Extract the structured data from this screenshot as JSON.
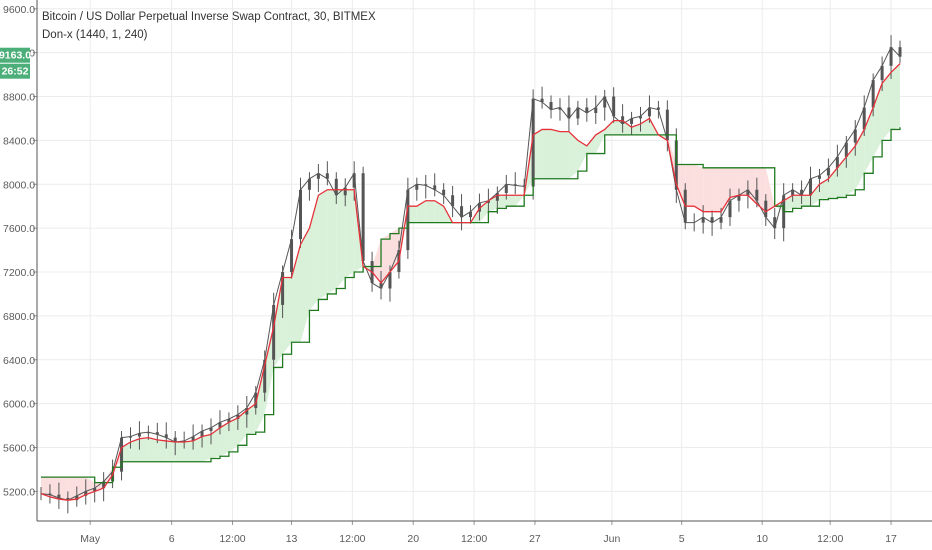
{
  "header": {
    "title": "Bitcoin / US Dollar Perpetual Inverse Swap Contract, 30, BITMEX",
    "indicator": "Don-x (1440, 1, 240)"
  },
  "colors": {
    "upper_line": "#e5323a",
    "lower_line": "#1f7a1f",
    "fill_bull": "#d9f0d9",
    "fill_bear": "#fbdede",
    "candle": "#555555",
    "badge": "#4caf7a",
    "grid": "#ececec"
  },
  "price_badges": [
    {
      "text": "9163.0"
    },
    {
      "text": "26:52"
    }
  ],
  "chart_data": {
    "type": "line",
    "title": "Bitcoin / US Dollar Perpetual Inverse Swap Contract, 30, BITMEX",
    "ylim": [
      4930,
      9680
    ],
    "xlim": [
      0,
      48
    ],
    "y_ticks": [
      5200,
      5600,
      6000,
      6400,
      6800,
      7200,
      7600,
      8000,
      8400,
      8800,
      9200,
      9600
    ],
    "y_tick_labels": [
      "5200.0",
      "5600.0",
      "6000.0",
      "6400.0",
      "6800.0",
      "7200.0",
      "7600.0",
      "8000.0",
      "8400.0",
      "8800.0",
      "9200.0",
      "9600.0"
    ],
    "x_ticks": [
      {
        "x": 2.75,
        "label": "May"
      },
      {
        "x": 7.3,
        "label": "6"
      },
      {
        "x": 10.7,
        "label": "12:00"
      },
      {
        "x": 14.0,
        "label": "13"
      },
      {
        "x": 17.4,
        "label": "12:00"
      },
      {
        "x": 20.8,
        "label": "20"
      },
      {
        "x": 24.2,
        "label": "12:00"
      },
      {
        "x": 27.6,
        "label": "27"
      },
      {
        "x": 31.9,
        "label": "Jun"
      },
      {
        "x": 35.8,
        "label": "5"
      },
      {
        "x": 40.3,
        "label": "10"
      },
      {
        "x": 44.1,
        "label": "12:00"
      },
      {
        "x": 47.5,
        "label": "17"
      }
    ],
    "grid": true,
    "series": [
      {
        "role": "price",
        "x": [
          0,
          0.5,
          1,
          1.5,
          2,
          2.5,
          3,
          3.5,
          4,
          4.5,
          5,
          5.5,
          6,
          6.5,
          7,
          7.5,
          8,
          8.5,
          9,
          9.5,
          10,
          10.5,
          11,
          11.5,
          12,
          12.5,
          13,
          13.5,
          14,
          14.5,
          15,
          15.5,
          16,
          16.5,
          17,
          17.5,
          18,
          18.5,
          19,
          19.5,
          20,
          20.5,
          21,
          21.5,
          22,
          22.5,
          23,
          23.5,
          24,
          24.5,
          25,
          25.5,
          26,
          26.5,
          27,
          27.5,
          28,
          28.5,
          29,
          29.5,
          30,
          30.5,
          31,
          31.5,
          32,
          32.5,
          33,
          33.5,
          34,
          34.5,
          35,
          35.5,
          36,
          36.5,
          37,
          37.5,
          38,
          38.5,
          39,
          39.5,
          40,
          40.5,
          41,
          41.5,
          42,
          42.5,
          43,
          43.5,
          44,
          44.5,
          45,
          45.5,
          46,
          46.5,
          47,
          47.5,
          48
        ],
        "values": [
          5180,
          5170,
          5140,
          5120,
          5160,
          5200,
          5230,
          5290,
          5380,
          5690,
          5700,
          5730,
          5740,
          5720,
          5690,
          5650,
          5660,
          5700,
          5750,
          5780,
          5830,
          5860,
          5900,
          5960,
          6100,
          6400,
          6900,
          7200,
          7500,
          7950,
          8050,
          8100,
          8050,
          7900,
          7970,
          8100,
          7300,
          7100,
          7050,
          7200,
          7400,
          7950,
          8000,
          7990,
          7950,
          7900,
          7800,
          7700,
          7750,
          7830,
          7850,
          7920,
          8000,
          7990,
          7980,
          8780,
          8750,
          8680,
          8700,
          8600,
          8700,
          8650,
          8700,
          8800,
          8620,
          8550,
          8600,
          8620,
          8700,
          8680,
          8400,
          7950,
          7650,
          7650,
          7700,
          7650,
          7700,
          7850,
          7900,
          7950,
          7850,
          7700,
          7600,
          7900,
          7950,
          7900,
          8050,
          8080,
          8150,
          8250,
          8380,
          8500,
          8700,
          8950,
          9080,
          9250,
          9163
        ]
      },
      {
        "role": "upper",
        "x": [
          0,
          0.5,
          1,
          1.5,
          2,
          2.5,
          3,
          3.5,
          4,
          4.5,
          5,
          5.5,
          6,
          6.5,
          7,
          7.5,
          8,
          8.5,
          9,
          9.5,
          10,
          10.5,
          11,
          11.5,
          12,
          12.5,
          13,
          13.5,
          14,
          14.5,
          15,
          15.5,
          16,
          16.5,
          17,
          17.5,
          18,
          18.5,
          19,
          19.5,
          20,
          20.5,
          21,
          21.5,
          22,
          22.5,
          23,
          23.5,
          24,
          24.5,
          25,
          25.5,
          26,
          26.5,
          27,
          27.5,
          28,
          28.5,
          29,
          29.5,
          30,
          30.5,
          31,
          31.5,
          32,
          32.5,
          33,
          33.5,
          34,
          34.5,
          35,
          35.5,
          36,
          36.5,
          37,
          37.5,
          38,
          38.5,
          39,
          39.5,
          40,
          40.5,
          41,
          41.5,
          42,
          42.5,
          43,
          43.5,
          44,
          44.5,
          45,
          45.5,
          46,
          46.5,
          47,
          47.5,
          48
        ],
        "values": [
          5180,
          5150,
          5130,
          5120,
          5130,
          5170,
          5200,
          5230,
          5350,
          5600,
          5650,
          5680,
          5690,
          5670,
          5660,
          5650,
          5650,
          5660,
          5700,
          5720,
          5780,
          5830,
          5870,
          5940,
          6000,
          6350,
          6700,
          7150,
          7150,
          7450,
          7600,
          7900,
          7950,
          7950,
          7950,
          7950,
          7250,
          7200,
          7100,
          7200,
          7300,
          7800,
          7800,
          7850,
          7850,
          7800,
          7650,
          7650,
          7650,
          7780,
          7850,
          7900,
          7900,
          7900,
          7900,
          8450,
          8500,
          8500,
          8480,
          8480,
          8400,
          8350,
          8450,
          8500,
          8580,
          8580,
          8520,
          8550,
          8600,
          8450,
          8400,
          8000,
          7800,
          7800,
          7750,
          7750,
          7750,
          7880,
          7900,
          7900,
          7820,
          7750,
          7800,
          7850,
          7900,
          7900,
          7900,
          8000,
          8050,
          8150,
          8250,
          8350,
          8500,
          8700,
          8920,
          9020,
          9100
        ]
      },
      {
        "role": "lower",
        "x": [
          0,
          0.5,
          1,
          1.5,
          2,
          2.5,
          3,
          3.5,
          4,
          4.5,
          5,
          5.5,
          6,
          6.5,
          7,
          7.5,
          8,
          8.5,
          9,
          9.5,
          10,
          10.5,
          11,
          11.5,
          12,
          12.5,
          13,
          13.5,
          14,
          14.5,
          15,
          15.5,
          16,
          16.5,
          17,
          17.5,
          18,
          18.5,
          19,
          19.5,
          20,
          20.5,
          21,
          21.5,
          22,
          22.5,
          23,
          23.5,
          24,
          24.5,
          25,
          25.5,
          26,
          26.5,
          27,
          27.5,
          28,
          28.5,
          29,
          29.5,
          30,
          30.5,
          31,
          31.5,
          32,
          32.5,
          33,
          33.5,
          34,
          34.5,
          35,
          35.5,
          36,
          36.5,
          37,
          37.5,
          38,
          38.5,
          39,
          39.5,
          40,
          40.5,
          41,
          41.5,
          42,
          42.5,
          43,
          43.5,
          44,
          44.5,
          45,
          45.5,
          46,
          46.5,
          47,
          47.5,
          48
        ],
        "values": [
          5330,
          5330,
          5330,
          5330,
          5330,
          5330,
          5280,
          5280,
          5420,
          5470,
          5470,
          5470,
          5470,
          5470,
          5470,
          5470,
          5470,
          5470,
          5470,
          5500,
          5520,
          5560,
          5620,
          5720,
          5740,
          5900,
          6330,
          6450,
          6560,
          6560,
          6850,
          6950,
          7000,
          7050,
          7150,
          7200,
          7250,
          7250,
          7500,
          7550,
          7600,
          7650,
          7650,
          7650,
          7650,
          7650,
          7650,
          7650,
          7650,
          7650,
          7750,
          7780,
          7800,
          7800,
          7900,
          8050,
          8050,
          8050,
          8050,
          8050,
          8120,
          8280,
          8280,
          8450,
          8450,
          8450,
          8450,
          8450,
          8450,
          8450,
          8450,
          8180,
          8180,
          8180,
          8150,
          8150,
          8150,
          8150,
          8150,
          8150,
          8150,
          8150,
          7800,
          7750,
          7780,
          7800,
          7800,
          7860,
          7870,
          7880,
          7900,
          7950,
          8100,
          8250,
          8400,
          8500,
          8520
        ]
      }
    ]
  }
}
